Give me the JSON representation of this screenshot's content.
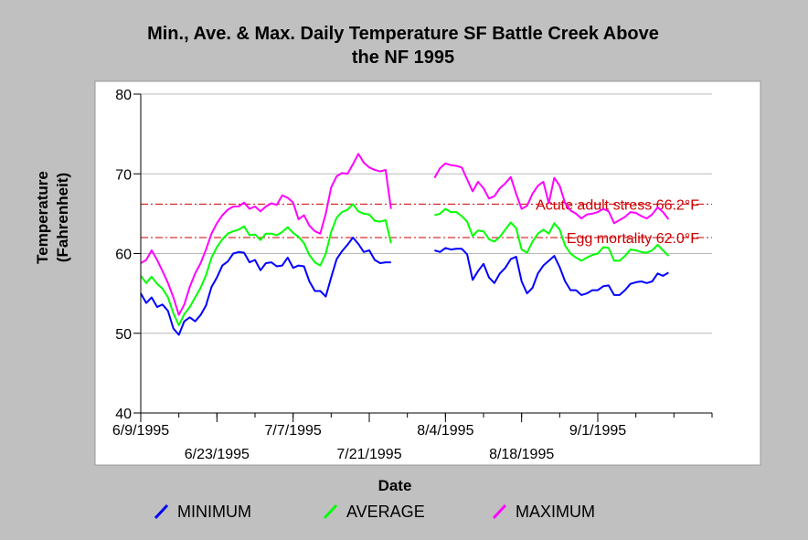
{
  "chart_data": {
    "type": "line",
    "title_line1": "Min., Ave. & Max. Daily Temperature SF Battle Creek Above",
    "title_line2": "the NF 1995",
    "xlabel": "Date",
    "ylabel_line1": "Temperature",
    "ylabel_line2": "(Fahrenheit)",
    "ylim": [
      40,
      80
    ],
    "yticks": [
      40,
      50,
      60,
      70,
      80
    ],
    "xlim": [
      "1995-06-09",
      "1995-09-22"
    ],
    "xticks": [
      {
        "date": "1995-06-09",
        "label": "6/9/1995",
        "row": 1
      },
      {
        "date": "1995-06-23",
        "label": "6/23/1995",
        "row": 2
      },
      {
        "date": "1995-07-07",
        "label": "7/7/1995",
        "row": 1
      },
      {
        "date": "1995-07-21",
        "label": "7/21/1995",
        "row": 2
      },
      {
        "date": "1995-08-04",
        "label": "8/4/1995",
        "row": 1
      },
      {
        "date": "1995-08-18",
        "label": "8/18/1995",
        "row": 2
      },
      {
        "date": "1995-09-01",
        "label": "9/1/1995",
        "row": 1
      }
    ],
    "grid": "horizontal",
    "reference_lines": [
      {
        "value": 66.2,
        "label": "Acute adult stress 66.2°F",
        "color": "#cc0000"
      },
      {
        "value": 62.0,
        "label": "Egg mortality 62.0°F",
        "color": "#cc0000"
      }
    ],
    "series": [
      {
        "name": "MINIMUM",
        "color": "#0000ff",
        "segments": [
          {
            "start": "1995-06-09",
            "values": [
              55.0,
              53.8,
              54.5,
              53.3,
              53.6,
              52.8,
              50.6,
              49.8,
              51.5,
              52.0,
              51.5,
              52.3,
              53.5,
              55.8,
              57.0,
              58.5,
              59.0,
              60.0,
              60.2,
              60.1,
              58.9,
              59.2,
              57.9,
              58.8,
              58.9,
              58.4,
              58.5,
              59.5,
              58.2,
              58.5,
              58.4,
              56.5,
              55.3,
              55.3,
              54.6,
              57.0,
              59.3,
              60.3,
              61.1,
              62.0,
              61.2,
              60.2,
              60.4,
              59.2,
              58.8,
              58.9,
              58.9
            ]
          },
          {
            "start": "1995-08-02",
            "values": [
              60.4,
              60.2,
              60.7,
              60.5,
              60.6,
              60.6,
              59.9,
              56.7,
              57.8,
              58.7,
              57.0,
              56.3,
              57.5,
              58.2,
              59.3,
              59.6,
              56.5,
              55.0,
              55.7,
              57.5,
              58.5,
              59.1,
              59.7,
              58.3,
              56.5,
              55.4,
              55.4,
              54.8,
              55.0,
              55.4,
              55.4,
              55.9,
              56.0,
              54.8,
              54.8,
              55.4,
              56.2,
              56.4,
              56.5,
              56.3,
              56.5,
              57.5,
              57.2,
              57.6
            ]
          }
        ]
      },
      {
        "name": "AVERAGE",
        "color": "#00ff00",
        "segments": [
          {
            "start": "1995-06-09",
            "values": [
              57.2,
              56.3,
              57.1,
              56.2,
              55.6,
              54.5,
              52.5,
              51.0,
              52.4,
              53.3,
              54.5,
              55.7,
              57.3,
              59.5,
              60.8,
              61.8,
              62.5,
              62.8,
              63.0,
              63.4,
              62.3,
              62.4,
              61.7,
              62.5,
              62.5,
              62.3,
              62.7,
              63.3,
              62.6,
              62.1,
              61.3,
              59.8,
              58.9,
              58.5,
              60.0,
              62.7,
              64.5,
              65.2,
              65.5,
              66.2,
              65.3,
              65.0,
              64.9,
              64.1,
              64.0,
              64.2,
              61.3
            ]
          },
          {
            "start": "1995-08-02",
            "values": [
              64.8,
              65.0,
              65.6,
              65.2,
              65.2,
              64.7,
              64.0,
              62.2,
              62.9,
              62.8,
              61.8,
              61.5,
              62.1,
              63.0,
              63.9,
              63.2,
              60.5,
              60.1,
              61.5,
              62.5,
              63.0,
              62.5,
              63.8,
              63.0,
              61.0,
              60.0,
              59.5,
              59.1,
              59.5,
              59.8,
              60.0,
              60.8,
              60.7,
              59.1,
              59.1,
              59.7,
              60.5,
              60.4,
              60.2,
              60.1,
              60.4,
              61.1,
              60.4,
              59.7
            ]
          }
        ]
      },
      {
        "name": "MAXIMUM",
        "color": "#ff00ff",
        "segments": [
          {
            "start": "1995-06-09",
            "values": [
              58.8,
              59.2,
              60.4,
              59.2,
              57.8,
              56.3,
              54.5,
              52.3,
              53.6,
              55.8,
              57.5,
              58.8,
              60.5,
              62.5,
              63.8,
              64.8,
              65.5,
              65.9,
              65.9,
              66.4,
              65.6,
              65.9,
              65.3,
              65.9,
              66.3,
              66.1,
              67.3,
              67.0,
              66.4,
              64.3,
              64.8,
              63.5,
              62.8,
              62.5,
              65.0,
              68.3,
              69.7,
              70.1,
              70.0,
              71.2,
              72.5,
              71.4,
              70.8,
              70.5,
              70.3,
              70.5,
              65.6
            ]
          },
          {
            "start": "1995-08-02",
            "values": [
              69.5,
              70.7,
              71.3,
              71.1,
              71.0,
              70.8,
              69.3,
              67.8,
              69.0,
              68.2,
              66.9,
              67.2,
              68.2,
              68.8,
              69.6,
              67.5,
              65.6,
              66.0,
              67.5,
              68.5,
              69.0,
              66.3,
              69.5,
              68.5,
              66.3,
              65.4,
              65.0,
              64.4,
              64.9,
              65.0,
              65.2,
              65.6,
              65.3,
              63.8,
              64.2,
              64.6,
              65.2,
              65.1,
              64.7,
              64.4,
              64.9,
              65.8,
              65.2,
              64.3
            ]
          }
        ]
      }
    ],
    "legend_placement": "bottom"
  }
}
